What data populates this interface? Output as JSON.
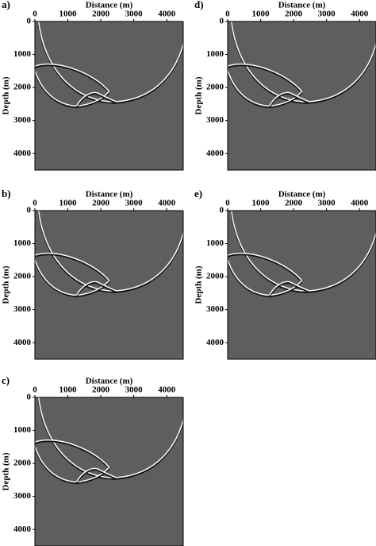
{
  "chart_data": [
    {
      "type": "image",
      "label": "a)",
      "xlabel": "Distance (m)",
      "ylabel": "Depth (m)",
      "xlim": [
        0,
        4500
      ],
      "ylim": [
        0,
        4500
      ],
      "y_inverted": true,
      "xticks": [
        0,
        1000,
        2000,
        3000,
        4000
      ],
      "yticks": [
        0,
        1000,
        2000,
        3000,
        4000
      ]
    },
    {
      "type": "image",
      "label": "b)",
      "xlabel": "Distance (m)",
      "ylabel": "Depth (m)",
      "xlim": [
        0,
        4500
      ],
      "ylim": [
        0,
        4500
      ],
      "y_inverted": true,
      "xticks": [
        0,
        1000,
        2000,
        3000,
        4000
      ],
      "yticks": [
        0,
        1000,
        2000,
        3000,
        4000
      ]
    },
    {
      "type": "image",
      "label": "c)",
      "xlabel": "Distance (m)",
      "ylabel": "Depth (m)",
      "xlim": [
        0,
        4500
      ],
      "ylim": [
        0,
        4500
      ],
      "y_inverted": true,
      "xticks": [
        0,
        1000,
        2000,
        3000,
        4000
      ],
      "yticks": [
        0,
        1000,
        2000,
        3000,
        4000
      ]
    },
    {
      "type": "image",
      "label": "d)",
      "xlabel": "Distance (m)",
      "ylabel": "Depth (m)",
      "xlim": [
        0,
        4500
      ],
      "ylim": [
        0,
        4500
      ],
      "y_inverted": true,
      "xticks": [
        0,
        1000,
        2000,
        3000,
        4000
      ],
      "yticks": [
        0,
        1000,
        2000,
        3000,
        4000
      ]
    },
    {
      "type": "image",
      "label": "e)",
      "xlabel": "Distance (m)",
      "ylabel": "Depth (m)",
      "xlim": [
        0,
        4500
      ],
      "ylim": [
        0,
        4500
      ],
      "y_inverted": true,
      "xticks": [
        0,
        1000,
        2000,
        3000,
        4000
      ],
      "yticks": [
        0,
        1000,
        2000,
        3000,
        4000
      ]
    }
  ]
}
